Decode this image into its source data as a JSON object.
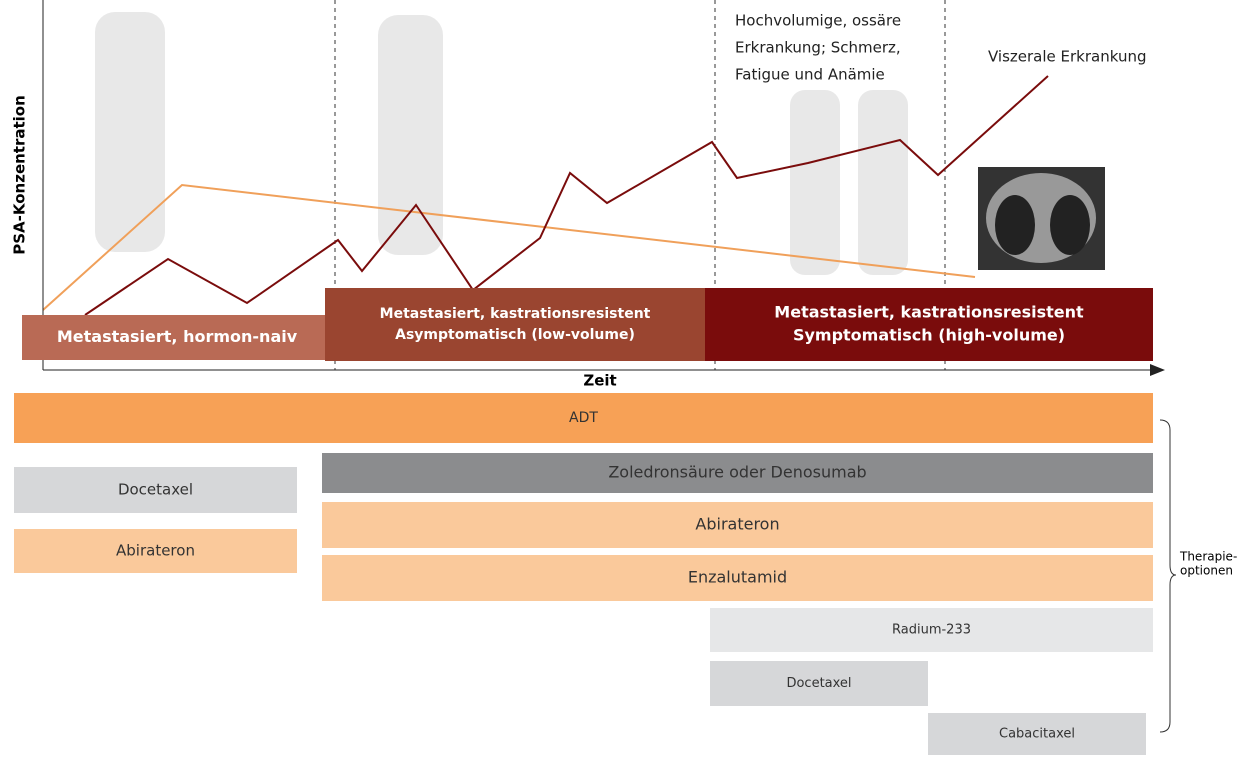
{
  "axes": {
    "y_label": "PSA-Konzentration",
    "x_label": "Zeit"
  },
  "annotations": {
    "bone": [
      "Hochvolumige, ossäre",
      "Erkrankung; Schmerz,",
      "Fatigue und Anämie"
    ],
    "visceral": "Viszerale Erkrankung"
  },
  "stages": [
    {
      "lines": [
        "Metastasiert, hormon-naiv"
      ]
    },
    {
      "lines": [
        "Metastasiert, kastrationsresistent",
        "Asymptomatisch (low-volume)"
      ]
    },
    {
      "lines": [
        "Metastasiert, kastrationsresistent",
        "Symptomatisch (high-volume)"
      ]
    }
  ],
  "therapies": [
    "ADT",
    "Docetaxel",
    "Abirateron",
    "Zoledronsäure oder Denosumab",
    "Abirateron",
    "Enzalutamid",
    "Radium-233",
    "Docetaxel",
    "Cabacitaxel"
  ],
  "bracket_label": [
    "Therapie-",
    "optionen"
  ]
}
